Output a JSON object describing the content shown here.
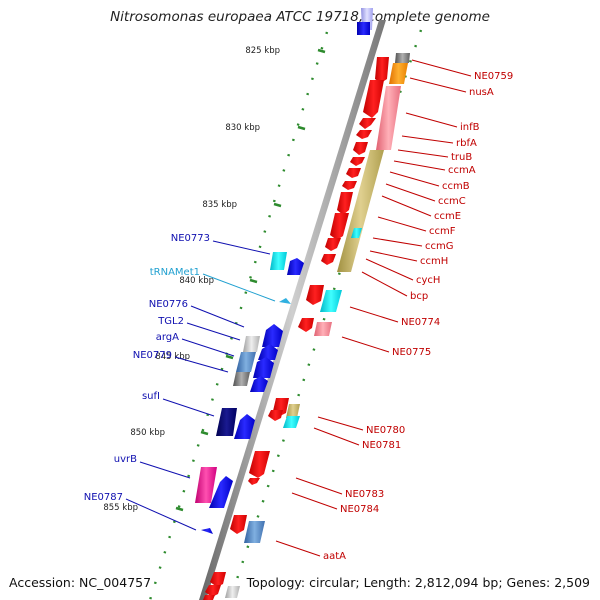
{
  "header": {
    "title": "Nitrosomonas europaea ATCC 19718, complete genome"
  },
  "footer": {
    "accession": "Accession: NC_004757",
    "topology": "Topology: circular; Length: 2,812,094 bp; Genes: 2,509"
  },
  "colors": {
    "backbone": "#888888",
    "tick": "#2e8b2e",
    "forward_label": "#1010b0",
    "reverse_label": "#c00000",
    "trna_label": "#20a0d0",
    "cds_reverse": "#ff0000",
    "cds_forward": "#1010ee"
  },
  "scale": {
    "kbp_labels": [
      "825 kbp",
      "830 kbp",
      "835 kbp",
      "840 kbp",
      "845 kbp",
      "850 kbp",
      "855 kbp"
    ]
  },
  "forward_genes": [
    {
      "label": "NE0773"
    },
    {
      "label": "tRNAMet1"
    },
    {
      "label": "NE0776"
    },
    {
      "label": "TGL2"
    },
    {
      "label": "argA"
    },
    {
      "label": "NE0779"
    },
    {
      "label": "sufI"
    },
    {
      "label": "uvrB"
    },
    {
      "label": "NE0787"
    }
  ],
  "reverse_genes": [
    {
      "label": "NE0759"
    },
    {
      "label": "nusA"
    },
    {
      "label": "infB"
    },
    {
      "label": "rbfA"
    },
    {
      "label": "truB"
    },
    {
      "label": "ccmA"
    },
    {
      "label": "ccmB"
    },
    {
      "label": "ccmC"
    },
    {
      "label": "ccmE"
    },
    {
      "label": "ccmF"
    },
    {
      "label": "ccmG"
    },
    {
      "label": "ccmH"
    },
    {
      "label": "cycH"
    },
    {
      "label": "bcp"
    },
    {
      "label": "NE0774"
    },
    {
      "label": "NE0775"
    },
    {
      "label": "NE0780"
    },
    {
      "label": "NE0781"
    },
    {
      "label": "NE0783"
    },
    {
      "label": "NE0784"
    },
    {
      "label": "aatA"
    }
  ]
}
